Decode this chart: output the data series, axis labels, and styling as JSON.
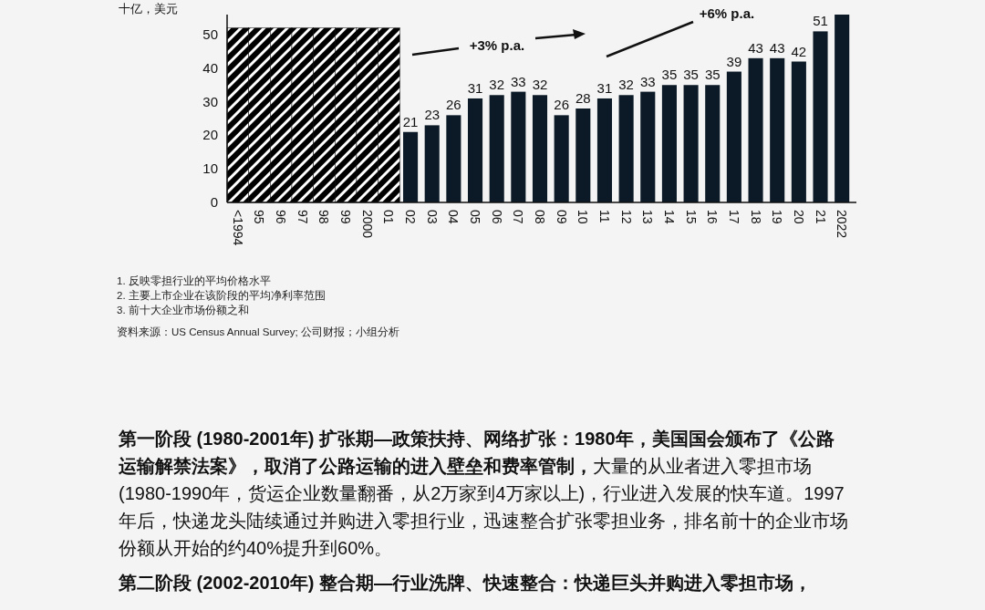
{
  "chart_data": {
    "type": "bar",
    "ylabel": "十亿，美元",
    "categories": [
      "<1994",
      "95",
      "96",
      "97",
      "98",
      "99",
      "2000",
      "01",
      "02",
      "03",
      "04",
      "05",
      "06",
      "07",
      "08",
      "09",
      "10",
      "11",
      "12",
      "13",
      "14",
      "15",
      "16",
      "17",
      "18",
      "19",
      "20",
      "21",
      "2022"
    ],
    "series": [
      {
        "color": "#000000",
        "values": [
          52,
          52,
          52,
          52,
          52,
          52,
          52,
          52,
          null,
          null,
          null,
          null,
          null,
          null,
          null,
          null,
          null,
          null,
          null,
          null,
          null,
          null,
          null,
          null,
          null,
          null,
          null,
          null,
          null
        ]
      },
      {
        "color": "#0b1a26",
        "values": [
          null,
          null,
          null,
          null,
          null,
          null,
          null,
          null,
          21,
          23,
          26,
          31,
          32,
          33,
          32,
          26,
          28,
          31,
          32,
          33,
          35,
          35,
          35,
          39,
          43,
          43,
          42,
          51,
          56
        ],
        "value_labels": [
          null,
          null,
          null,
          null,
          null,
          null,
          null,
          null,
          "21",
          "23",
          "26",
          "31",
          "32",
          "33",
          "32",
          "26",
          "28",
          "31",
          "32",
          "33",
          "35",
          "35",
          "35",
          "39",
          "43",
          "43",
          "42",
          "51",
          null
        ]
      }
    ],
    "ylim": [
      0,
      56
    ],
    "yticks": [
      0,
      10,
      20,
      30,
      40,
      50
    ],
    "grid": false,
    "annotations": [
      "+3% p.a.",
      "+6% p.a.",
      "1. 反映零担行业的平均价格水平",
      "2. 主要上市企业在该阶段的平均净利率范围",
      "3. 前十大企业市场份额之和",
      "资料来源：US Census Annual Survey; 公司财报；小组分析",
      "第一阶段 (1980-2001年) 扩张期—政策扶持、网络扩张：1980年，美国国会颁布了《公路运输解禁法案》，取消了公路运输的进入壁垒和费率管制，",
      "大量的从业者进入零担市场 (1980-1990年，货运企业数量翻番，从2万家到4万家以上)，行业进入发展的快车道。1997年后，快递龙头陆续通过并购进入零担行业，迅速整合扩张零担业务，排名前十的企业市场份额从开始的约40%提升到60%。",
      "第二阶段 (2002-2010年) 整合期—行业洗牌、快速整合：快递巨头并购进入零担市场，"
    ]
  }
}
